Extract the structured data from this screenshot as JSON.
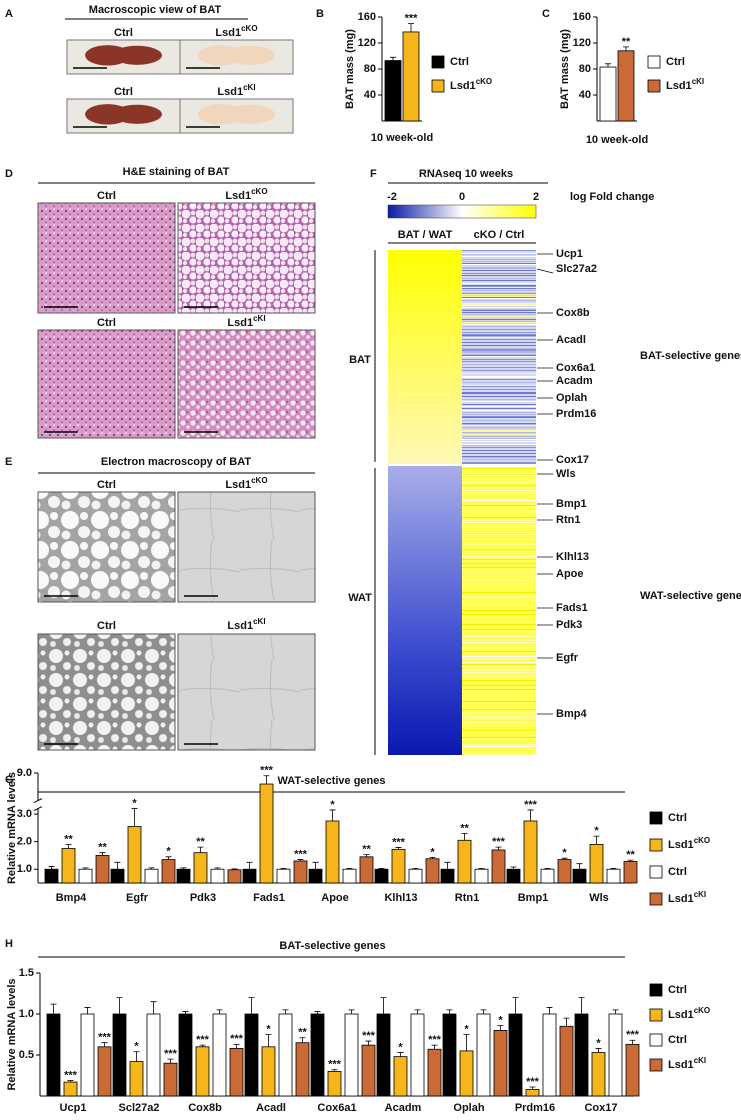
{
  "panel_labels": [
    "A",
    "B",
    "C",
    "D",
    "E",
    "F",
    "G",
    "H"
  ],
  "panels": {
    "macroscopic": {
      "title": "Macroscopic view of BAT",
      "labels": [
        "Ctrl",
        "Lsd1cKO",
        "Ctrl",
        "Lsd1cKI"
      ]
    },
    "he_staining": {
      "title": "H&E staining of BAT",
      "labels": [
        "Ctrl",
        "Lsd1cKO",
        "Ctrl",
        "Lsd1cKI"
      ]
    },
    "electron": {
      "title": "Electron macroscopy of BAT",
      "labels": [
        "Ctrl",
        "Lsd1cKO",
        "Ctrl",
        "Lsd1cKI"
      ]
    },
    "heatmap": {
      "title": "RNAseq 10 weeks",
      "colorbar_ticks": [
        -2,
        0,
        2
      ],
      "colorbar_label": "log Fold change",
      "columns": [
        "BAT / WAT",
        "cKO / Ctrl"
      ],
      "row_groups": [
        "BAT",
        "WAT"
      ],
      "group_labels": [
        "BAT-selective genes",
        "WAT-selective genes"
      ],
      "genes": [
        "Ucp1",
        "Slc27a2",
        "Cox8b",
        "Acadl",
        "Cox6a1",
        "Acadm",
        "Oplah",
        "Prdm16",
        "Cox17",
        "Wls",
        "Bmp1",
        "Rtn1",
        "Klhl13",
        "Apoe",
        "Fads1",
        "Pdk3",
        "Egfr",
        "Bmp4"
      ]
    }
  },
  "chart_data": [
    {
      "type": "bar",
      "y_label": "BAT mass (mg)",
      "categories": [
        "10 week-old"
      ],
      "ylim": [
        0,
        160
      ],
      "yticks": [
        40,
        80,
        120,
        160
      ],
      "series": [
        {
          "name": "Ctrl",
          "color": "#000000",
          "values": [
            93
          ],
          "errors": [
            5
          ],
          "significance": [
            null
          ]
        },
        {
          "name": "Lsd1cKO",
          "color": "#f6b51a",
          "values": [
            137
          ],
          "errors": [
            13
          ],
          "significance": [
            "***"
          ]
        }
      ]
    },
    {
      "type": "bar",
      "y_label": "BAT mass (mg)",
      "categories": [
        "10 week-old"
      ],
      "ylim": [
        0,
        160
      ],
      "yticks": [
        40,
        80,
        120,
        160
      ],
      "series": [
        {
          "name": "Ctrl",
          "color": "#ffffff",
          "values": [
            83
          ],
          "errors": [
            5
          ],
          "significance": [
            null
          ]
        },
        {
          "name": "Lsd1cKI",
          "color": "#c96a37",
          "values": [
            108
          ],
          "errors": [
            6
          ],
          "significance": [
            "**"
          ]
        }
      ]
    },
    {
      "type": "bar",
      "title": "WAT-selective genes",
      "y_label": "Relative mRNA levels",
      "categories": [
        "Bmp4",
        "Egfr",
        "Pdk3",
        "Fads1",
        "Apoe",
        "Klhl13",
        "Rtn1",
        "Bmp1",
        "Wls"
      ],
      "ylim": [
        0.5,
        9.0
      ],
      "ybreak": [
        3.2,
        8.0
      ],
      "yticks": [
        {
          "value": 1.0,
          "label": "1.0"
        },
        {
          "value": 2.0,
          "label": "2.0"
        },
        {
          "value": 3.0,
          "label": "3.0"
        },
        {
          "value": 9.0,
          "label": "9.0"
        }
      ],
      "series": [
        {
          "name": "Ctrl",
          "color": "#000000",
          "values": [
            1.0,
            1.0,
            1.0,
            1.0,
            1.0,
            1.0,
            1.0,
            1.0,
            1.0
          ],
          "errors": [
            0.1,
            0.25,
            0.05,
            0.25,
            0.25,
            0.03,
            0.25,
            0.08,
            0.2
          ],
          "significance": [
            null,
            null,
            null,
            null,
            null,
            null,
            null,
            null,
            null
          ]
        },
        {
          "name": "Lsd1cKO",
          "color": "#f6b51a",
          "values": [
            1.75,
            2.55,
            1.6,
            8.6,
            2.75,
            1.72,
            2.05,
            2.75,
            1.9
          ],
          "errors": [
            0.15,
            0.8,
            0.2,
            0.3,
            0.4,
            0.07,
            0.25,
            0.4,
            0.3
          ],
          "significance": [
            "**",
            "*",
            "**",
            "***",
            "*",
            "***",
            "**",
            "***",
            "*"
          ]
        },
        {
          "name": "Ctrl",
          "color": "#ffffff",
          "values": [
            1.0,
            1.0,
            1.0,
            1.0,
            1.0,
            1.0,
            1.0,
            1.0,
            1.0
          ],
          "errors": [
            0.05,
            0.05,
            0.05,
            0.03,
            0.03,
            0.03,
            0.03,
            0.03,
            0.03
          ],
          "significance": [
            null,
            null,
            null,
            null,
            null,
            null,
            null,
            null,
            null
          ]
        },
        {
          "name": "Lsd1cKI",
          "color": "#c96a37",
          "values": [
            1.5,
            1.35,
            0.98,
            1.3,
            1.45,
            1.38,
            1.7,
            1.35,
            1.28
          ],
          "errors": [
            0.1,
            0.1,
            0.03,
            0.05,
            0.08,
            0.05,
            0.1,
            0.05,
            0.05
          ],
          "significance": [
            "**",
            "*",
            null,
            "***",
            "**",
            "*",
            "***",
            "*",
            "**"
          ]
        }
      ]
    },
    {
      "type": "bar",
      "title": "BAT-selective genes",
      "y_label": "Relative mRNA levels",
      "categories": [
        "Ucp1",
        "Scl27a2",
        "Cox8b",
        "Acadl",
        "Cox6a1",
        "Acadm",
        "Oplah",
        "Prdm16",
        "Cox17"
      ],
      "ylim": [
        0,
        1.5
      ],
      "yticks": [
        {
          "value": 0.5,
          "label": "0.5"
        },
        {
          "value": 1.0,
          "label": "1.0"
        },
        {
          "value": 1.5,
          "label": "1.5"
        }
      ],
      "series": [
        {
          "name": "Ctrl",
          "color": "#000000",
          "values": [
            1.0,
            1.0,
            1.0,
            1.0,
            1.0,
            1.0,
            1.0,
            1.0,
            1.0
          ],
          "errors": [
            0.12,
            0.2,
            0.03,
            0.2,
            0.03,
            0.2,
            0.05,
            0.2,
            0.2
          ],
          "significance": [
            null,
            null,
            null,
            null,
            null,
            null,
            null,
            null,
            null
          ]
        },
        {
          "name": "Lsd1cKO",
          "color": "#f6b51a",
          "values": [
            0.17,
            0.42,
            0.6,
            0.6,
            0.3,
            0.48,
            0.55,
            0.08,
            0.53
          ],
          "errors": [
            0.02,
            0.12,
            0.02,
            0.15,
            0.02,
            0.05,
            0.2,
            0.03,
            0.05
          ],
          "significance": [
            "***",
            "*",
            "***",
            "*",
            "***",
            "*",
            "*",
            "***",
            "*"
          ]
        },
        {
          "name": "Ctrl",
          "color": "#ffffff",
          "values": [
            1.0,
            1.0,
            1.0,
            1.0,
            1.0,
            1.0,
            1.0,
            1.0,
            1.0
          ],
          "errors": [
            0.08,
            0.15,
            0.05,
            0.05,
            0.05,
            0.05,
            0.05,
            0.08,
            0.05
          ],
          "significance": [
            null,
            null,
            null,
            null,
            null,
            null,
            null,
            null,
            null
          ]
        },
        {
          "name": "Lsd1cKI",
          "color": "#c96a37",
          "values": [
            0.6,
            0.4,
            0.58,
            0.65,
            0.62,
            0.57,
            0.8,
            0.85,
            0.63
          ],
          "errors": [
            0.05,
            0.05,
            0.05,
            0.06,
            0.05,
            0.05,
            0.06,
            0.1,
            0.05
          ],
          "significance": [
            "***",
            "***",
            "***",
            "**",
            "***",
            "***",
            "*",
            null,
            "***"
          ]
        }
      ]
    }
  ]
}
